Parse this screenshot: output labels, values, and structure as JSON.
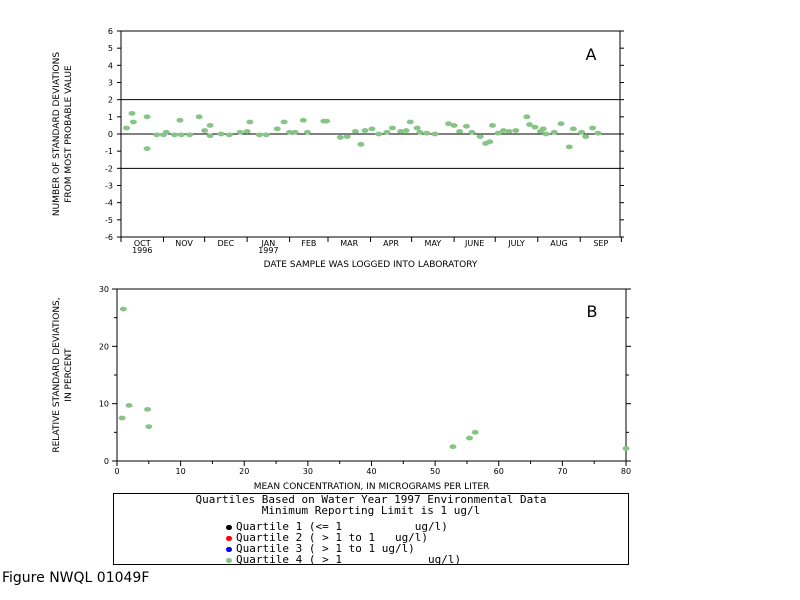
{
  "figure_label": "Figure NWQL 01049F",
  "legend": {
    "title_line1": "Quartiles Based on Water Year 1997 Environmental Data",
    "title_line2": "Minimum Reporting Limit is 1 ug/l",
    "items": [
      {
        "label": "Quartile 1 (<= 1           ug/l)",
        "color": "#000000"
      },
      {
        "label": "Quartile 2 ( > 1 to 1   ug/l)",
        "color": "#ff0000"
      },
      {
        "label": "Quartile 3 ( > 1 to 1 ug/l)",
        "color": "#0000ff"
      },
      {
        "label": "Quartile 4 ( > 1             ug/l)",
        "color": "#88c488"
      }
    ]
  },
  "chart_data": [
    {
      "type": "scatter",
      "panel_label": "A",
      "xlabel": "DATE SAMPLE WAS LOGGED INTO LABORATORY",
      "ylabel_lines": [
        "NUMBER OF STANDARD DEVIATIONS",
        "FROM MOST PROBABLE VALUE"
      ],
      "ylim": [
        -6,
        6
      ],
      "yticks": [
        -6,
        -5,
        -4,
        -3,
        -2,
        -1,
        0,
        1,
        2,
        3,
        4,
        5,
        6
      ],
      "xlim": [
        "1996-10-01",
        "1997-09-30"
      ],
      "month_labels": [
        "OCT",
        "NOV",
        "DEC",
        "JAN",
        "FEB",
        "MAR",
        "APR",
        "MAY",
        "JUNE",
        "JULY",
        "AUG",
        "SEP"
      ],
      "year_labels": [
        {
          "text": "1996",
          "month": "OCT"
        },
        {
          "text": "1997",
          "month": "JAN"
        }
      ],
      "reference_lines": [
        2,
        0,
        -2
      ],
      "series": [
        {
          "color": "#88c488",
          "points": [
            {
              "x": "1996-10-05",
              "y": 0.35
            },
            {
              "x": "1996-10-09",
              "y": 1.2
            },
            {
              "x": "1996-10-10",
              "y": 0.7
            },
            {
              "x": "1996-10-20",
              "y": -0.85
            },
            {
              "x": "1996-10-20",
              "y": 1.0
            },
            {
              "x": "1996-10-27",
              "y": -0.05
            },
            {
              "x": "1996-11-01",
              "y": -0.05
            },
            {
              "x": "1996-11-03",
              "y": 0.1
            },
            {
              "x": "1996-11-09",
              "y": -0.05
            },
            {
              "x": "1996-11-13",
              "y": 0.8
            },
            {
              "x": "1996-11-14",
              "y": -0.05
            },
            {
              "x": "1996-11-20",
              "y": -0.05
            },
            {
              "x": "1996-11-27",
              "y": 1.0
            },
            {
              "x": "1996-12-01",
              "y": 0.2
            },
            {
              "x": "1996-12-05",
              "y": 0.5
            },
            {
              "x": "1996-12-05",
              "y": -0.1
            },
            {
              "x": "1996-12-13",
              "y": 0.0
            },
            {
              "x": "1996-12-19",
              "y": -0.05
            },
            {
              "x": "1996-12-27",
              "y": 0.1
            },
            {
              "x": "1997-01-01",
              "y": 0.15
            },
            {
              "x": "1997-01-03",
              "y": 0.7
            },
            {
              "x": "1997-01-10",
              "y": -0.05
            },
            {
              "x": "1997-01-15",
              "y": -0.05
            },
            {
              "x": "1997-01-23",
              "y": 0.3
            },
            {
              "x": "1997-01-28",
              "y": 0.7
            },
            {
              "x": "1997-02-01",
              "y": 0.1
            },
            {
              "x": "1997-02-05",
              "y": 0.1
            },
            {
              "x": "1997-02-11",
              "y": 0.8
            },
            {
              "x": "1997-02-14",
              "y": 0.1
            },
            {
              "x": "1997-02-26",
              "y": 0.75
            },
            {
              "x": "1997-02-28",
              "y": 0.75
            },
            {
              "x": "1997-03-10",
              "y": -0.2
            },
            {
              "x": "1997-03-15",
              "y": -0.15
            },
            {
              "x": "1997-03-21",
              "y": 0.15
            },
            {
              "x": "1997-03-25",
              "y": -0.6
            },
            {
              "x": "1997-03-28",
              "y": 0.2
            },
            {
              "x": "1997-04-02",
              "y": 0.3
            },
            {
              "x": "1997-04-07",
              "y": 0.0
            },
            {
              "x": "1997-04-13",
              "y": 0.1
            },
            {
              "x": "1997-04-17",
              "y": 0.35
            },
            {
              "x": "1997-04-23",
              "y": 0.15
            },
            {
              "x": "1997-04-27",
              "y": 0.2
            },
            {
              "x": "1997-04-30",
              "y": 0.7
            },
            {
              "x": "1997-05-05",
              "y": 0.35
            },
            {
              "x": "1997-05-07",
              "y": 0.1
            },
            {
              "x": "1997-05-12",
              "y": 0.05
            },
            {
              "x": "1997-05-18",
              "y": 0.0
            },
            {
              "x": "1997-05-28",
              "y": 0.6
            },
            {
              "x": "1997-06-01",
              "y": 0.5
            },
            {
              "x": "1997-06-05",
              "y": 0.15
            },
            {
              "x": "1997-06-10",
              "y": 0.45
            },
            {
              "x": "1997-06-14",
              "y": 0.1
            },
            {
              "x": "1997-06-20",
              "y": -0.15
            },
            {
              "x": "1997-06-24",
              "y": -0.55
            },
            {
              "x": "1997-06-27",
              "y": -0.45
            },
            {
              "x": "1997-06-29",
              "y": 0.5
            },
            {
              "x": "1997-07-03",
              "y": 0.05
            },
            {
              "x": "1997-07-07",
              "y": 0.2
            },
            {
              "x": "1997-07-11",
              "y": 0.15
            },
            {
              "x": "1997-07-16",
              "y": 0.2
            },
            {
              "x": "1997-07-24",
              "y": 1.0
            },
            {
              "x": "1997-07-26",
              "y": 0.55
            },
            {
              "x": "1997-07-30",
              "y": 0.4
            },
            {
              "x": "1997-08-03",
              "y": 0.15
            },
            {
              "x": "1997-08-05",
              "y": 0.3
            },
            {
              "x": "1997-08-07",
              "y": 0.0
            },
            {
              "x": "1997-08-13",
              "y": 0.1
            },
            {
              "x": "1997-08-18",
              "y": 0.6
            },
            {
              "x": "1997-08-24",
              "y": -0.75
            },
            {
              "x": "1997-08-27",
              "y": 0.3
            },
            {
              "x": "1997-09-02",
              "y": 0.1
            },
            {
              "x": "1997-09-05",
              "y": -0.15
            },
            {
              "x": "1997-09-10",
              "y": 0.35
            },
            {
              "x": "1997-09-14",
              "y": 0.05
            }
          ]
        }
      ]
    },
    {
      "type": "scatter",
      "panel_label": "B",
      "xlabel": "MEAN CONCENTRATION, IN MICROGRAMS PER LITER",
      "ylabel_lines": [
        "RELATIVE STANDARD DEVIATIONS,",
        "IN PERCENT"
      ],
      "xlim": [
        0,
        80
      ],
      "xticks": [
        0,
        10,
        20,
        30,
        40,
        50,
        60,
        70,
        80
      ],
      "ylim": [
        0,
        30
      ],
      "yticks": [
        0,
        10,
        20,
        30
      ],
      "series": [
        {
          "color": "#88c488",
          "points": [
            {
              "x": 1.0,
              "y": 26.5
            },
            {
              "x": 0.8,
              "y": 7.5
            },
            {
              "x": 1.9,
              "y": 9.7
            },
            {
              "x": 4.8,
              "y": 9.0
            },
            {
              "x": 5.0,
              "y": 6.0
            },
            {
              "x": 52.8,
              "y": 2.5
            },
            {
              "x": 55.4,
              "y": 4.0
            },
            {
              "x": 56.3,
              "y": 5.0
            },
            {
              "x": 80.0,
              "y": 2.2
            }
          ]
        }
      ]
    }
  ]
}
